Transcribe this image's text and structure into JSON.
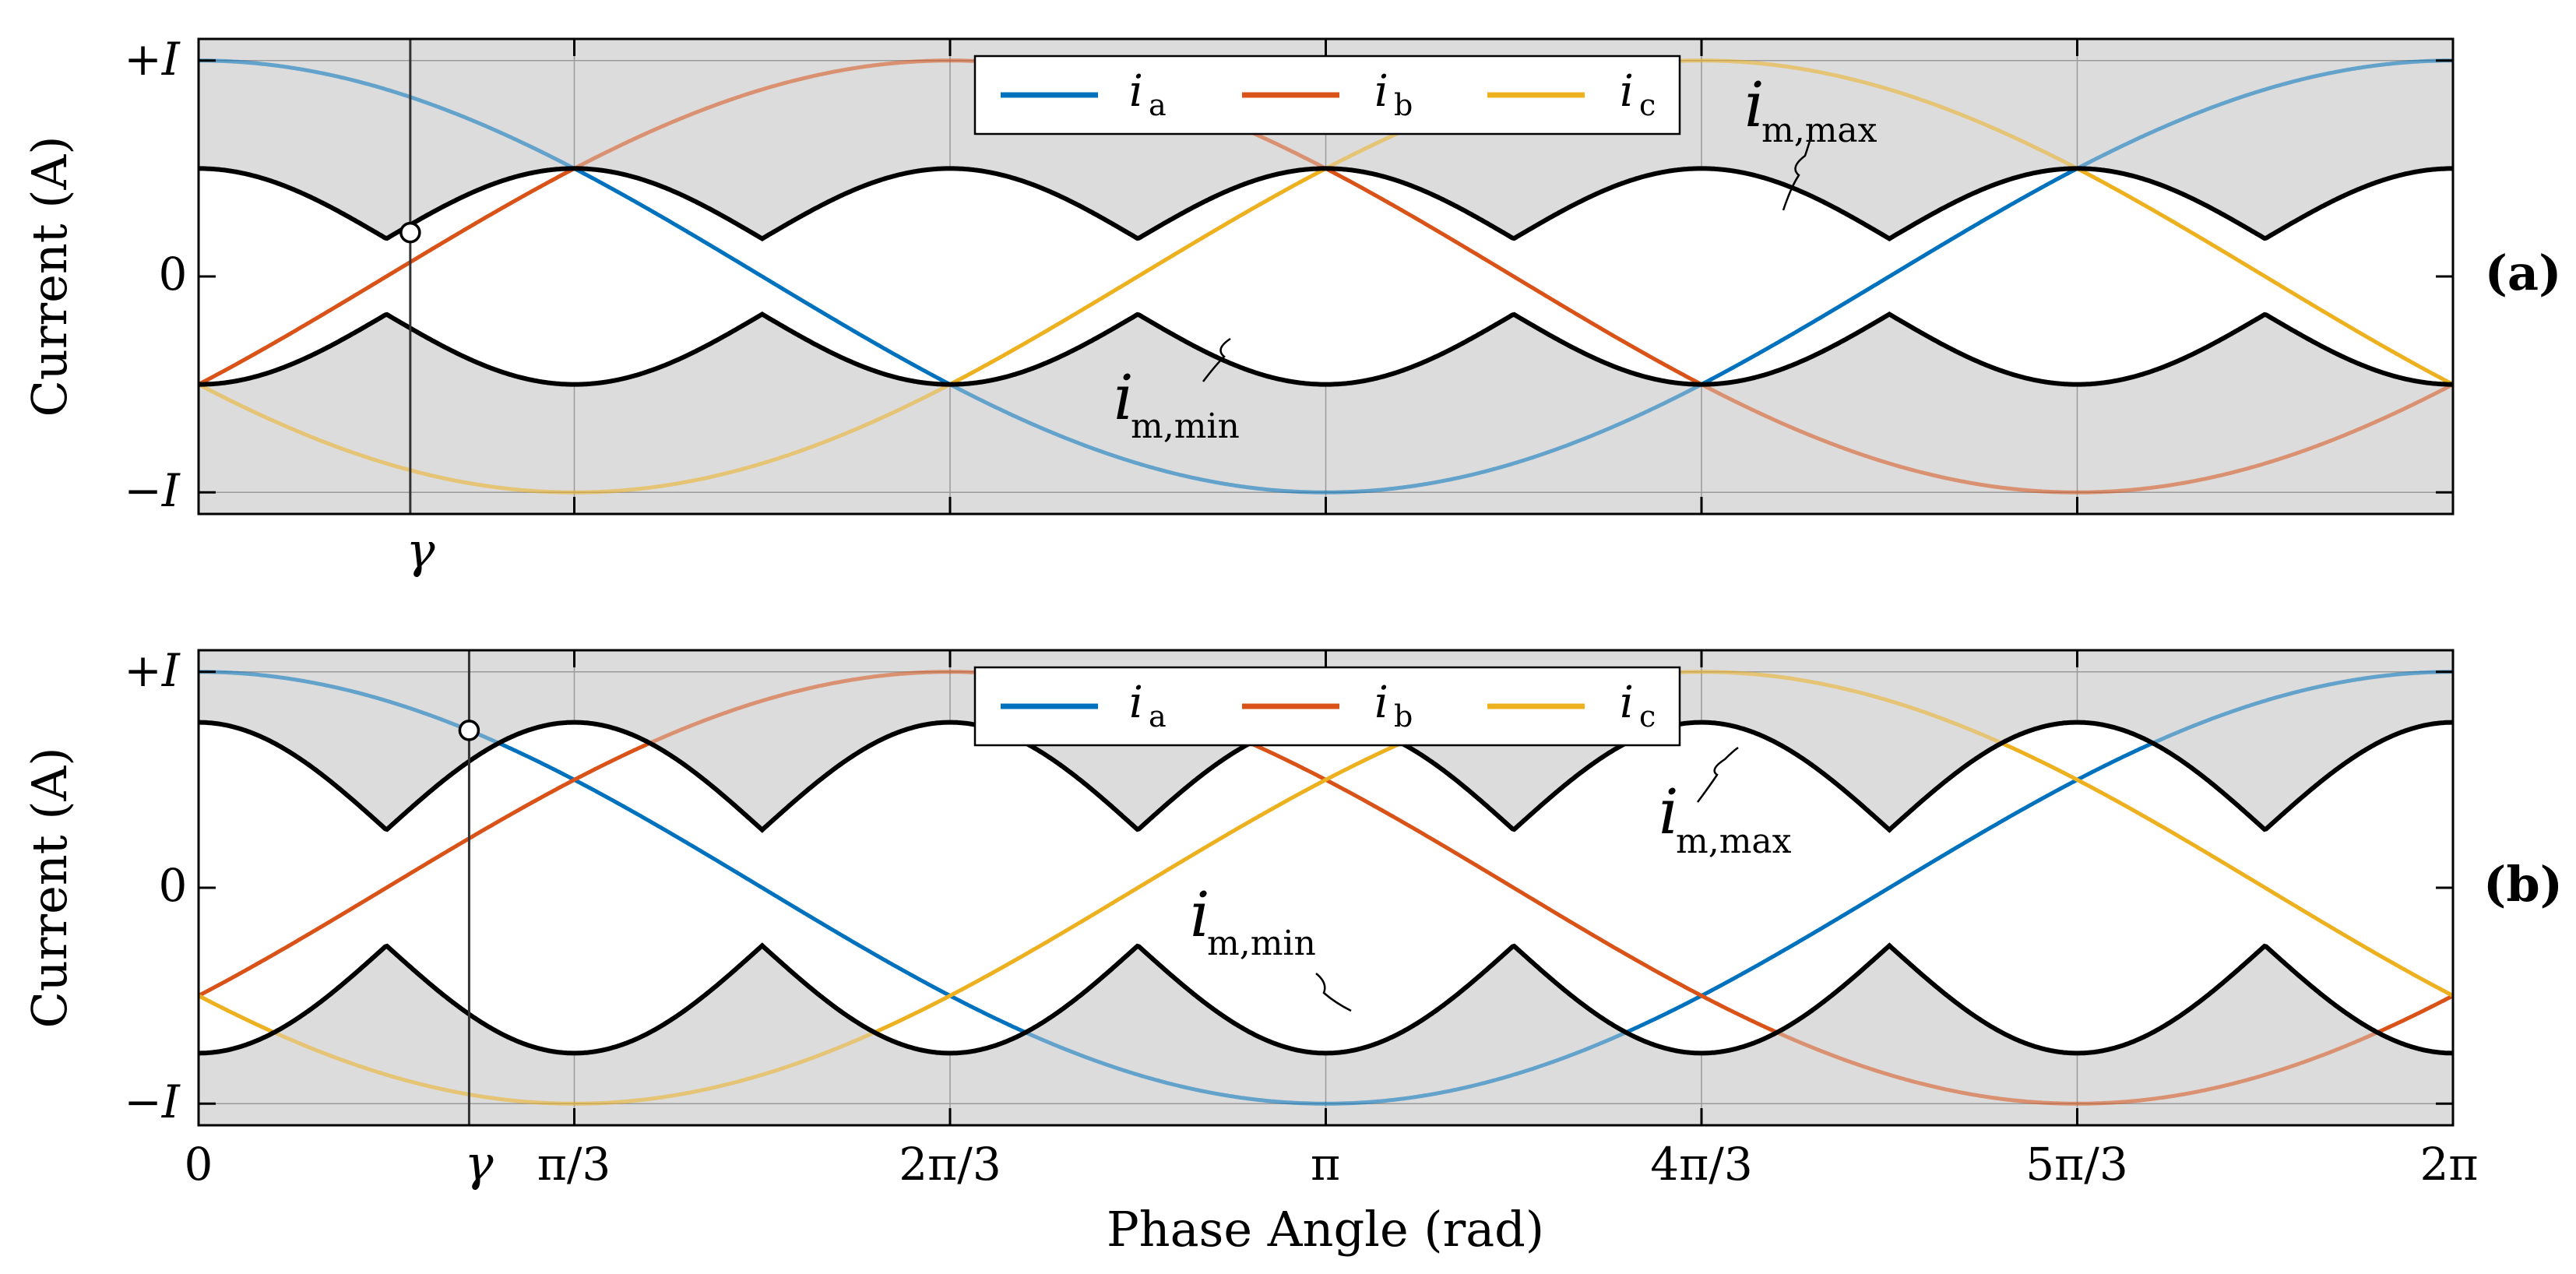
{
  "colors": {
    "ia": "#0072BD",
    "ib": "#D95319",
    "ic": "#EDB120",
    "envelope": "#000000",
    "shade": "#DCDCDC",
    "grid": "#9a9a9a"
  },
  "xlabel": "Phase Angle (rad)",
  "ylabel": "Current (A)",
  "x_ticks": [
    {
      "label": "0",
      "value": 0
    },
    {
      "label": "π/3",
      "value": 1.0472
    },
    {
      "label": "2π/3",
      "value": 2.0944
    },
    {
      "label": "π",
      "value": 3.1416
    },
    {
      "label": "4π/3",
      "value": 4.1888
    },
    {
      "label": "5π/3",
      "value": 5.236
    },
    {
      "label": "2π",
      "value": 6.2832
    }
  ],
  "y_ticks": [
    {
      "label": "+I",
      "value": 1
    },
    {
      "label": "0",
      "value": 0
    },
    {
      "label": "−I",
      "value": -1
    }
  ],
  "gamma_label": "γ",
  "legend": {
    "ia_sym": "i",
    "ia_sub": "a",
    "ib_sym": "i",
    "ib_sub": "b",
    "ic_sym": "i",
    "ic_sub": "c"
  },
  "annotations": {
    "max_sym": "i",
    "max_sub": "m,max",
    "min_sym": "i",
    "min_sub": "m,min"
  },
  "chart_data": [
    {
      "type": "line",
      "panel_label": "(a)",
      "xlabel": "",
      "ylabel": "Current (A)",
      "xlim": [
        0,
        6.2832
      ],
      "ylim": [
        -1.1,
        1.1
      ],
      "gamma": 0.59,
      "envelope_level": 0.5,
      "series": [
        {
          "name": "ia",
          "formula": "cos(θ)"
        },
        {
          "name": "ib",
          "formula": "cos(θ − 2π/3)"
        },
        {
          "name": "ic",
          "formula": "cos(θ + 2π/3)"
        },
        {
          "name": "i_m,max",
          "note": "upper black envelope, sawtooth between zero crossings"
        },
        {
          "name": "i_m,min",
          "note": "lower black envelope, mirror of i_m,max"
        }
      ]
    },
    {
      "type": "line",
      "panel_label": "(b)",
      "xlabel": "Phase Angle (rad)",
      "ylabel": "Current (A)",
      "xlim": [
        0,
        6.2832
      ],
      "ylim": [
        -1.1,
        1.1
      ],
      "gamma": 0.754,
      "envelope_level": 0.766,
      "series": [
        {
          "name": "ia",
          "formula": "cos(θ)"
        },
        {
          "name": "ib",
          "formula": "cos(θ − 2π/3)"
        },
        {
          "name": "ic",
          "formula": "cos(θ + 2π/3)"
        },
        {
          "name": "i_m,max",
          "note": "upper black envelope"
        },
        {
          "name": "i_m,min",
          "note": "lower black envelope"
        }
      ]
    }
  ]
}
